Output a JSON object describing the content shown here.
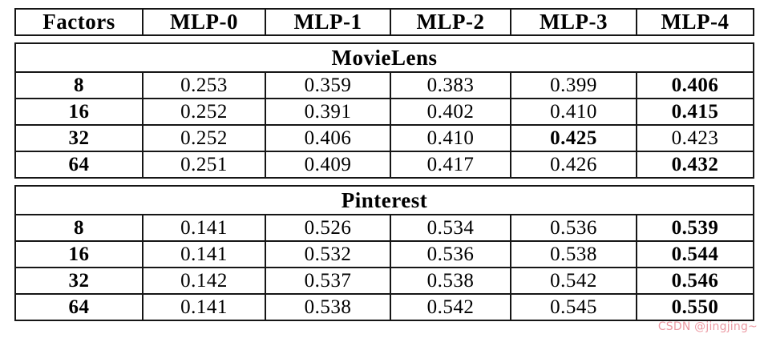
{
  "header": {
    "columns": [
      "Factors",
      "MLP-0",
      "MLP-1",
      "MLP-2",
      "MLP-3",
      "MLP-4"
    ]
  },
  "sections": [
    {
      "title": "MovieLens",
      "rows": [
        {
          "factor": "8",
          "values": [
            "0.253",
            "0.359",
            "0.383",
            "0.399",
            "0.406"
          ],
          "bold_value_indexes": [
            4
          ]
        },
        {
          "factor": "16",
          "values": [
            "0.252",
            "0.391",
            "0.402",
            "0.410",
            "0.415"
          ],
          "bold_value_indexes": [
            4
          ]
        },
        {
          "factor": "32",
          "values": [
            "0.252",
            "0.406",
            "0.410",
            "0.425",
            "0.423"
          ],
          "bold_value_indexes": [
            3
          ]
        },
        {
          "factor": "64",
          "values": [
            "0.251",
            "0.409",
            "0.417",
            "0.426",
            "0.432"
          ],
          "bold_value_indexes": [
            4
          ]
        }
      ]
    },
    {
      "title": "Pinterest",
      "rows": [
        {
          "factor": "8",
          "values": [
            "0.141",
            "0.526",
            "0.534",
            "0.536",
            "0.539"
          ],
          "bold_value_indexes": [
            4
          ]
        },
        {
          "factor": "16",
          "values": [
            "0.141",
            "0.532",
            "0.536",
            "0.538",
            "0.544"
          ],
          "bold_value_indexes": [
            4
          ]
        },
        {
          "factor": "32",
          "values": [
            "0.142",
            "0.537",
            "0.538",
            "0.542",
            "0.546"
          ],
          "bold_value_indexes": [
            4
          ]
        },
        {
          "factor": "64",
          "values": [
            "0.141",
            "0.538",
            "0.542",
            "0.545",
            "0.550"
          ],
          "bold_value_indexes": [
            4
          ]
        }
      ]
    }
  ],
  "watermark": {
    "text": "CSDN @jingjing~",
    "color": "#ec9aa3"
  },
  "chart_data": {
    "type": "table",
    "columns": [
      "Factors",
      "MLP-0",
      "MLP-1",
      "MLP-2",
      "MLP-3",
      "MLP-4"
    ],
    "groups": [
      {
        "title": "MovieLens",
        "rows": [
          [
            8,
            0.253,
            0.359,
            0.383,
            0.399,
            0.406
          ],
          [
            16,
            0.252,
            0.391,
            0.402,
            0.41,
            0.415
          ],
          [
            32,
            0.252,
            0.406,
            0.41,
            0.425,
            0.423
          ],
          [
            64,
            0.251,
            0.409,
            0.417,
            0.426,
            0.432
          ]
        ]
      },
      {
        "title": "Pinterest",
        "rows": [
          [
            8,
            0.141,
            0.526,
            0.534,
            0.536,
            0.539
          ],
          [
            16,
            0.141,
            0.532,
            0.536,
            0.538,
            0.544
          ],
          [
            32,
            0.142,
            0.537,
            0.538,
            0.542,
            0.546
          ],
          [
            64,
            0.141,
            0.538,
            0.542,
            0.545,
            0.55
          ]
        ]
      }
    ]
  }
}
